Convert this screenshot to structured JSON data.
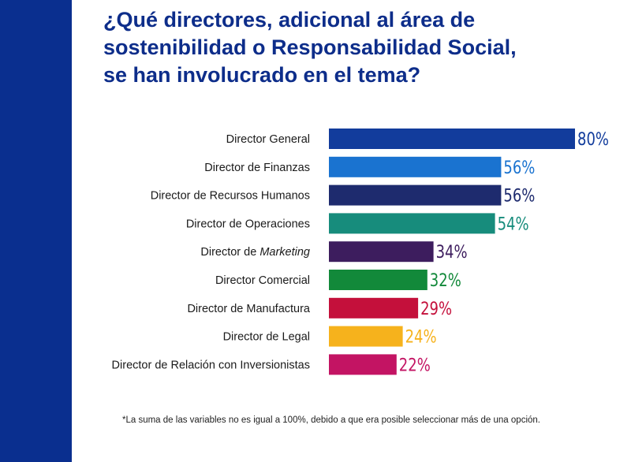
{
  "colors": {
    "side_band": "#0a2f8f",
    "title": "#0d2d8a"
  },
  "title_lines": [
    "¿Qué directores, adicional al área de",
    "sostenibilidad o Responsabilidad Social,",
    "se han involucrado en el tema?"
  ],
  "footnote": "*La suma de las variables no es igual a 100%, debido a que era posible seleccionar más de una opción.",
  "chart_data": {
    "type": "bar",
    "orientation": "horizontal",
    "title": "¿Qué directores, adicional al área de sostenibilidad o Responsabilidad Social, se han involucrado en el tema?",
    "xlim": [
      0,
      100
    ],
    "unit": "%",
    "grid": false,
    "categories": [
      {
        "label": "Director General",
        "value": 80,
        "color": "#123c9c"
      },
      {
        "label": "Director de Finanzas",
        "value": 56,
        "color": "#1a73d0"
      },
      {
        "label": "Director de Recursos Humanos",
        "value": 56,
        "color": "#1e2b6e"
      },
      {
        "label": "Director de Operaciones",
        "value": 54,
        "color": "#178c7c"
      },
      {
        "label_prefix": "Director de ",
        "label_italic": "Marketing",
        "value": 34,
        "color": "#3d1d5e"
      },
      {
        "label": "Director Comercial",
        "value": 32,
        "color": "#12893a"
      },
      {
        "label": "Director de Manufactura",
        "value": 29,
        "color": "#c4103b"
      },
      {
        "label": "Director de Legal",
        "value": 24,
        "color": "#f6b21c"
      },
      {
        "label": "Director de Relación con Inversionistas",
        "value": 22,
        "color": "#c31463"
      }
    ]
  }
}
